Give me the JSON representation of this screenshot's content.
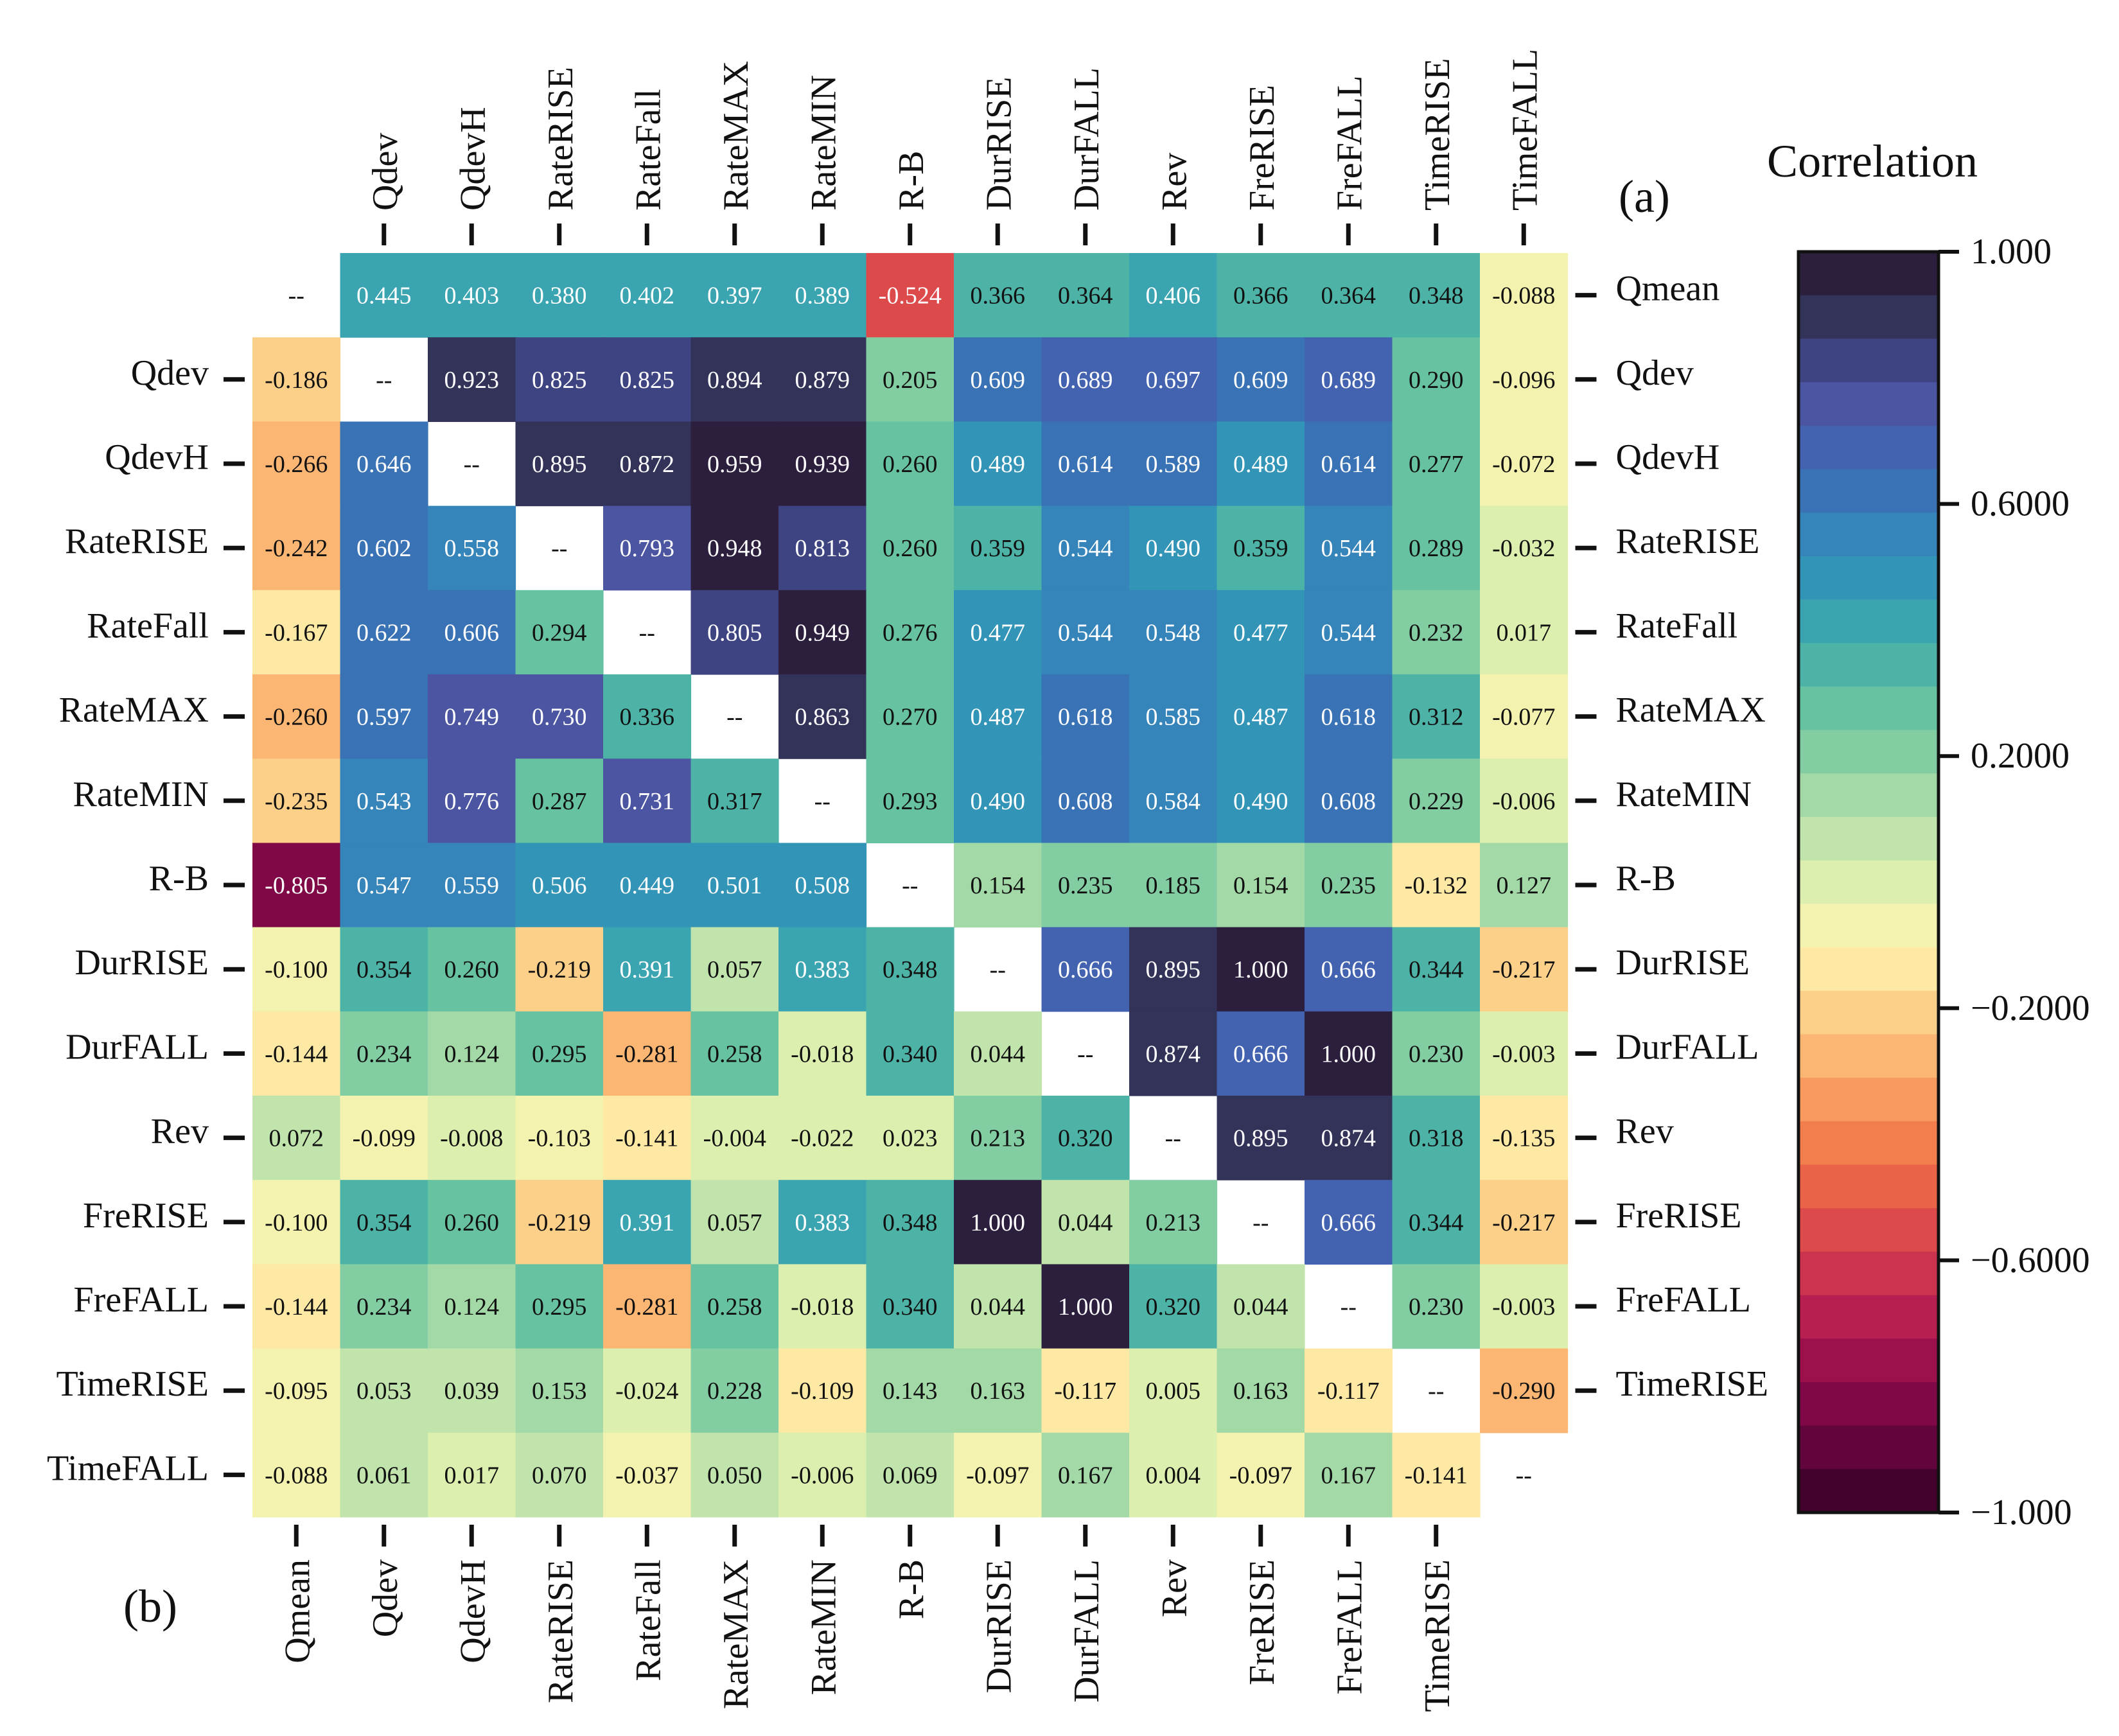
{
  "chart_data": {
    "type": "heatmap",
    "variables": [
      "Qmean",
      "Qdev",
      "QdevH",
      "RateRISE",
      "RateFall",
      "RateMAX",
      "RateMIN",
      "R-B",
      "DurRISE",
      "DurFALL",
      "Rev",
      "FreRISE",
      "FreFALL",
      "TimeRISE",
      "TimeFALL"
    ],
    "diagonal_label": "--",
    "panel_a_label": "(a)",
    "panel_b_label": "(b)",
    "matrix": [
      [
        null,
        "0.445",
        "0.403",
        "0.380",
        "0.402",
        "0.397",
        "0.389",
        "-0.524",
        "0.366",
        "0.364",
        "0.406",
        "0.366",
        "0.364",
        "0.348",
        "-0.088"
      ],
      [
        "-0.186",
        null,
        "0.923",
        "0.825",
        "0.825",
        "0.894",
        "0.879",
        "0.205",
        "0.609",
        "0.689",
        "0.697",
        "0.609",
        "0.689",
        "0.290",
        "-0.096"
      ],
      [
        "-0.266",
        "0.646",
        null,
        "0.895",
        "0.872",
        "0.959",
        "0.939",
        "0.260",
        "0.489",
        "0.614",
        "0.589",
        "0.489",
        "0.614",
        "0.277",
        "-0.072"
      ],
      [
        "-0.242",
        "0.602",
        "0.558",
        null,
        "0.793",
        "0.948",
        "0.813",
        "0.260",
        "0.359",
        "0.544",
        "0.490",
        "0.359",
        "0.544",
        "0.289",
        "-0.032"
      ],
      [
        "-0.167",
        "0.622",
        "0.606",
        "0.294",
        null,
        "0.805",
        "0.949",
        "0.276",
        "0.477",
        "0.544",
        "0.548",
        "0.477",
        "0.544",
        "0.232",
        "0.017"
      ],
      [
        "-0.260",
        "0.597",
        "0.749",
        "0.730",
        "0.336",
        null,
        "0.863",
        "0.270",
        "0.487",
        "0.618",
        "0.585",
        "0.487",
        "0.618",
        "0.312",
        "-0.077"
      ],
      [
        "-0.235",
        "0.543",
        "0.776",
        "0.287",
        "0.731",
        "0.317",
        null,
        "0.293",
        "0.490",
        "0.608",
        "0.584",
        "0.490",
        "0.608",
        "0.229",
        "-0.006"
      ],
      [
        "-0.805",
        "0.547",
        "0.559",
        "0.506",
        "0.449",
        "0.501",
        "0.508",
        null,
        "0.154",
        "0.235",
        "0.185",
        "0.154",
        "0.235",
        "-0.132",
        "0.127"
      ],
      [
        "-0.100",
        "0.354",
        "0.260",
        "-0.219",
        "0.391",
        "0.057",
        "0.383",
        "0.348",
        null,
        "0.666",
        "0.895",
        "1.000",
        "0.666",
        "0.344",
        "-0.217"
      ],
      [
        "-0.144",
        "0.234",
        "0.124",
        "0.295",
        "-0.281",
        "0.258",
        "-0.018",
        "0.340",
        "0.044",
        null,
        "0.874",
        "0.666",
        "1.000",
        "0.230",
        "-0.003"
      ],
      [
        "0.072",
        "-0.099",
        "-0.008",
        "-0.103",
        "-0.141",
        "-0.004",
        "-0.022",
        "0.023",
        "0.213",
        "0.320",
        null,
        "0.895",
        "0.874",
        "0.318",
        "-0.135"
      ],
      [
        "-0.100",
        "0.354",
        "0.260",
        "-0.219",
        "0.391",
        "0.057",
        "0.383",
        "0.348",
        "1.000",
        "0.044",
        "0.213",
        null,
        "0.666",
        "0.344",
        "-0.217"
      ],
      [
        "-0.144",
        "0.234",
        "0.124",
        "0.295",
        "-0.281",
        "0.258",
        "-0.018",
        "0.340",
        "0.044",
        "1.000",
        "0.320",
        "0.044",
        null,
        "0.230",
        "-0.003"
      ],
      [
        "-0.095",
        "0.053",
        "0.039",
        "0.153",
        "-0.024",
        "0.228",
        "-0.109",
        "0.143",
        "0.163",
        "-0.117",
        "0.005",
        "0.163",
        "-0.117",
        null,
        "-0.290"
      ],
      [
        "-0.088",
        "0.061",
        "0.017",
        "0.070",
        "-0.037",
        "0.050",
        "-0.006",
        "0.069",
        "-0.097",
        "0.167",
        "0.004",
        "-0.097",
        "0.167",
        "-0.141",
        null
      ]
    ],
    "colorbar": {
      "title": "Correlation",
      "range": [
        -1,
        1
      ],
      "tick_values": [
        1,
        0.6,
        0.2,
        -0.2,
        -0.6,
        -1
      ],
      "tick_labels": [
        "1.000",
        "0.6000",
        "0.2000",
        "−0.2000",
        "−0.6000",
        "−1.000"
      ],
      "colors": [
        "#2c1e3d",
        "#333359",
        "#3e4482",
        "#4c55a1",
        "#4363b0",
        "#3a73b5",
        "#3584ba",
        "#3294b6",
        "#3aa4b0",
        "#4db3a7",
        "#66c2a0",
        "#83cda3",
        "#a2d9a7",
        "#c0e4ac",
        "#ddefae",
        "#f3f2ae",
        "#fde9a4",
        "#fdd08a",
        "#fbb673",
        "#f89a5e",
        "#f27e4e",
        "#e96349",
        "#dc4a4b",
        "#cb334e",
        "#b61f4f",
        "#9c104c",
        "#800846",
        "#62053c",
        "#43022d"
      ]
    }
  }
}
